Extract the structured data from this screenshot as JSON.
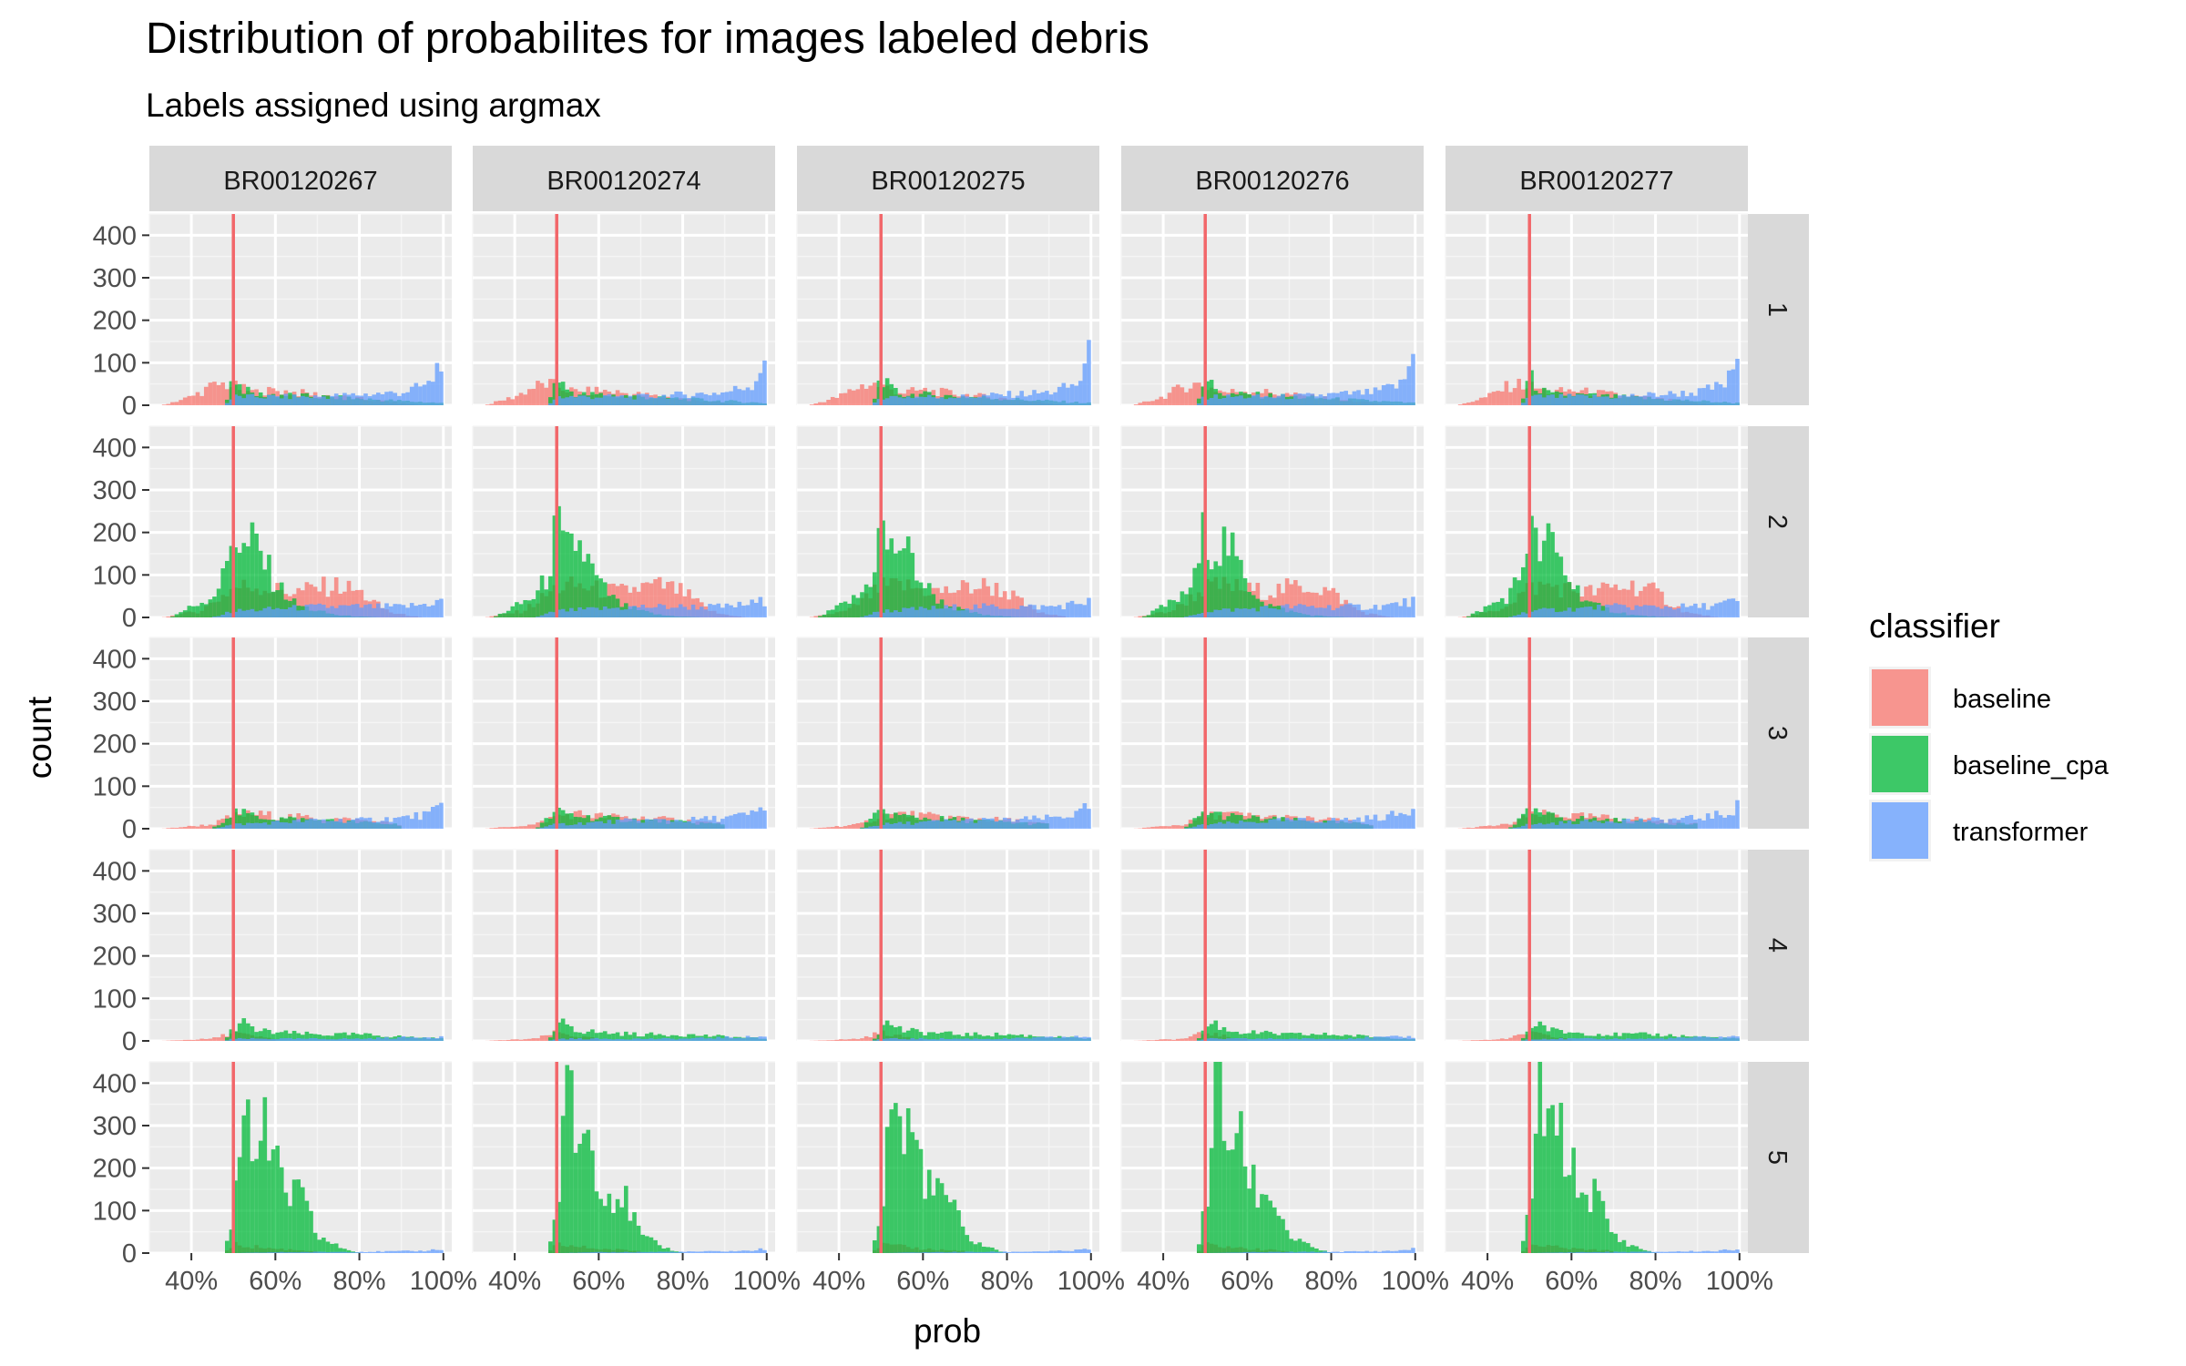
{
  "chart_data": {
    "type": "histogram",
    "title": "Distribution of probabilites for images labeled debris",
    "subtitle": "Labels assigned using argmax",
    "xlabel": "prob",
    "ylabel": "count",
    "xlim": [
      0.3,
      1.02
    ],
    "ylim": [
      0,
      450
    ],
    "x_ticks": [
      0.4,
      0.6,
      0.8,
      1.0
    ],
    "x_tick_labels": [
      "40%",
      "60%",
      "80%",
      "100%"
    ],
    "y_ticks": [
      0,
      100,
      200,
      300,
      400
    ],
    "y_tick_labels": [
      "0",
      "100",
      "200",
      "300",
      "400"
    ],
    "reference_line": {
      "x": 0.5,
      "color": "#F2676A"
    },
    "facet_cols": [
      "BR00120267",
      "BR00120274",
      "BR00120275",
      "BR00120276",
      "BR00120277"
    ],
    "facet_rows": [
      "1",
      "2",
      "3",
      "4",
      "5"
    ],
    "legend": {
      "title": "classifier",
      "position": "right",
      "items": [
        {
          "name": "baseline",
          "color": "#F8766D"
        },
        {
          "name": "baseline_cpa",
          "color": "#00BA38"
        },
        {
          "name": "transformer",
          "color": "#619CFF"
        }
      ]
    },
    "bin_width": 0.01,
    "bin_start": 0.33,
    "series_by_row": [
      {
        "row": "1",
        "baseline": {
          "x": [
            0.33,
            0.4,
            0.45,
            0.48,
            0.5,
            0.55,
            0.6,
            0.7,
            0.8,
            0.9,
            0.95
          ],
          "y": [
            0,
            20,
            45,
            50,
            45,
            30,
            35,
            25,
            15,
            5,
            0
          ]
        },
        "baseline_cpa": {
          "x": [
            0.48,
            0.5,
            0.52,
            0.55,
            0.6,
            0.7,
            0.8,
            0.9,
            1.0
          ],
          "y": [
            0,
            70,
            40,
            25,
            25,
            20,
            15,
            10,
            5
          ]
        },
        "transformer": {
          "x": [
            0.48,
            0.5,
            0.6,
            0.7,
            0.8,
            0.9,
            0.97,
            1.0
          ],
          "y": [
            0,
            20,
            20,
            20,
            25,
            30,
            50,
            130
          ]
        }
      },
      {
        "row": "2",
        "baseline": {
          "x": [
            0.33,
            0.42,
            0.48,
            0.5,
            0.55,
            0.6,
            0.65,
            0.7,
            0.75,
            0.8,
            0.85,
            0.88,
            0.95
          ],
          "y": [
            0,
            15,
            55,
            70,
            75,
            65,
            60,
            70,
            75,
            60,
            25,
            10,
            0
          ]
        },
        "baseline_cpa": {
          "x": [
            0.35,
            0.45,
            0.48,
            0.5,
            0.52,
            0.55,
            0.58,
            0.6,
            0.65,
            0.7,
            0.75,
            0.8,
            0.85
          ],
          "y": [
            0,
            50,
            100,
            220,
            150,
            180,
            120,
            80,
            30,
            15,
            5,
            2,
            0
          ]
        },
        "transformer": {
          "x": [
            0.45,
            0.5,
            0.6,
            0.7,
            0.8,
            0.9,
            0.95,
            1.0
          ],
          "y": [
            0,
            15,
            20,
            25,
            25,
            25,
            30,
            40
          ]
        }
      },
      {
        "row": "3",
        "baseline": {
          "x": [
            0.33,
            0.45,
            0.5,
            0.55,
            0.6,
            0.7,
            0.8,
            0.9
          ],
          "y": [
            0,
            10,
            30,
            35,
            30,
            25,
            20,
            10
          ]
        },
        "baseline_cpa": {
          "x": [
            0.45,
            0.5,
            0.55,
            0.6,
            0.7,
            0.8,
            0.9
          ],
          "y": [
            0,
            40,
            30,
            25,
            20,
            15,
            10
          ]
        },
        "transformer": {
          "x": [
            0.45,
            0.5,
            0.6,
            0.7,
            0.8,
            0.9,
            0.97,
            1.0
          ],
          "y": [
            0,
            10,
            15,
            20,
            20,
            25,
            35,
            55
          ]
        }
      },
      {
        "row": "4",
        "baseline": {
          "x": [
            0.33,
            0.45,
            0.5,
            0.55,
            0.6
          ],
          "y": [
            0,
            5,
            20,
            10,
            5
          ]
        },
        "baseline_cpa": {
          "x": [
            0.48,
            0.5,
            0.52,
            0.55,
            0.6,
            0.7,
            0.8,
            0.9,
            1.0
          ],
          "y": [
            0,
            30,
            45,
            25,
            20,
            15,
            15,
            10,
            5
          ]
        },
        "transformer": {
          "x": [
            0.48,
            0.5,
            0.6,
            0.7,
            0.8,
            0.9,
            1.0
          ],
          "y": [
            0,
            5,
            5,
            5,
            5,
            8,
            10
          ]
        }
      },
      {
        "row": "5",
        "baseline": {
          "x": [
            0.48,
            0.5,
            0.55,
            0.6,
            0.7
          ],
          "y": [
            0,
            20,
            15,
            10,
            5
          ]
        },
        "baseline_cpa": {
          "x": [
            0.48,
            0.5,
            0.52,
            0.53,
            0.55,
            0.57,
            0.6,
            0.63,
            0.65,
            0.68,
            0.7,
            0.75,
            0.8
          ],
          "y": [
            0,
            100,
            300,
            420,
            250,
            300,
            200,
            130,
            150,
            90,
            40,
            15,
            0
          ]
        },
        "transformer": {
          "x": [
            0.5,
            0.6,
            0.8,
            0.95,
            1.0
          ],
          "y": [
            0,
            2,
            3,
            5,
            10
          ]
        }
      }
    ]
  }
}
